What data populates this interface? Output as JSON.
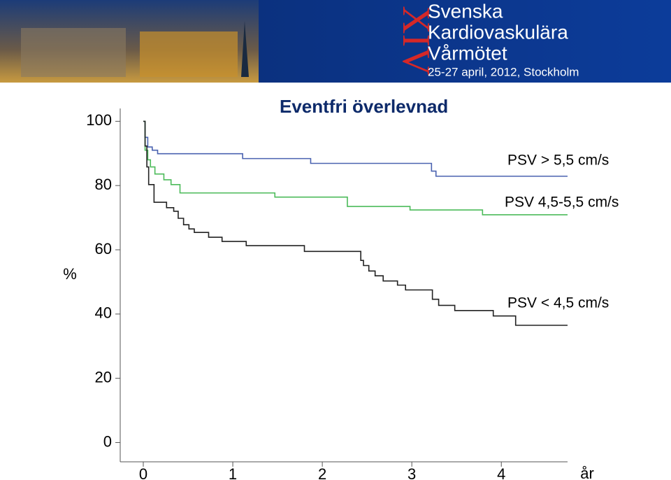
{
  "banner": {
    "numeral": "XIV",
    "lines": [
      "Svenska",
      "Kardiovaskulära",
      "Vårmötet"
    ],
    "subtitle": "25-27 april, 2012, Stockholm"
  },
  "chart_data": {
    "type": "line",
    "step": true,
    "title": "Eventfri överlevnad",
    "y_label": "%",
    "x_label": "år",
    "xlim": [
      0,
      4.74
    ],
    "ylim": [
      -6,
      104
    ],
    "xticks": [
      0,
      1,
      2,
      3,
      4
    ],
    "yticks": [
      0,
      20,
      40,
      60,
      80,
      100
    ],
    "series": [
      {
        "name": "PSV > 5,5 cm/s",
        "color": "#4a62b0",
        "x": [
          0,
          0.02,
          0.05,
          0.1,
          0.16,
          1.11,
          1.87,
          3.22,
          3.27,
          4.74
        ],
        "values": [
          100,
          95,
          92,
          91,
          89.9,
          88.4,
          86.9,
          84.5,
          82.9,
          82.9
        ]
      },
      {
        "name": "PSV 4,5-5,5 cm/s",
        "color": "#4cbb5a",
        "x": [
          0,
          0.02,
          0.05,
          0.08,
          0.13,
          0.23,
          0.31,
          0.41,
          1.47,
          2.28,
          2.98,
          3.79,
          4.74
        ],
        "values": [
          100,
          91,
          88,
          85.8,
          83.6,
          81.8,
          80.3,
          77.7,
          76.4,
          73.5,
          72.4,
          70.9,
          70.9
        ]
      },
      {
        "name": "PSV < 4,5 cm/s",
        "color": "#222222",
        "x": [
          0,
          0.02,
          0.04,
          0.06,
          0.12,
          0.26,
          0.34,
          0.39,
          0.45,
          0.51,
          0.57,
          0.73,
          0.88,
          1.15,
          1.8,
          2.43,
          2.46,
          2.52,
          2.59,
          2.68,
          2.84,
          2.93,
          3.23,
          3.3,
          3.48,
          3.91,
          4.16,
          4.74
        ],
        "values": [
          100,
          92.3,
          85.8,
          80.3,
          74.8,
          73.1,
          72,
          69.8,
          67.8,
          66.5,
          65.4,
          63.9,
          62.6,
          61.3,
          59.5,
          56.7,
          55.1,
          53.4,
          51.9,
          50.3,
          49,
          47.5,
          44.6,
          42.7,
          41.1,
          39.4,
          36.5,
          36.5
        ]
      }
    ]
  }
}
